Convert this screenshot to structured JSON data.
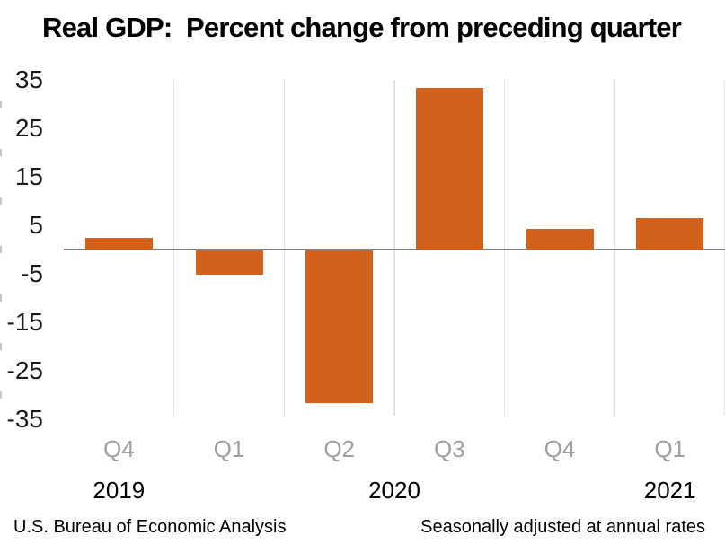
{
  "title": "Real GDP:  Percent change from preceding quarter",
  "chart_data": {
    "type": "bar",
    "title": "Real GDP:  Percent change from preceding quarter",
    "categories": [
      "Q4",
      "Q1",
      "Q2",
      "Q3",
      "Q4",
      "Q1"
    ],
    "values": [
      2.4,
      -5.0,
      -31.4,
      33.4,
      4.3,
      6.4
    ],
    "year_groups": [
      {
        "label": "2019",
        "from": 0,
        "to": 0
      },
      {
        "label": "2020",
        "from": 1,
        "to": 4
      },
      {
        "label": "2021",
        "from": 5,
        "to": 5
      }
    ],
    "yticks": [
      35,
      25,
      15,
      5,
      -5,
      -15,
      -25,
      -35
    ],
    "ylim": [
      -35,
      35
    ],
    "xlabel": "",
    "ylabel": "",
    "legend_position": "none",
    "grid": "vertical category separators only",
    "bar_color": "#D2611C",
    "gridline_color": "#E2E2E2",
    "zero_line_color": "#808080",
    "ytick_label_color": "#1A1A1A",
    "quarter_label_color": "#A0A0A0",
    "year_label_color": "#000000"
  },
  "footer": {
    "source": "U.S. Bureau of Economic Analysis",
    "note": "Seasonally adjusted at annual rates"
  }
}
